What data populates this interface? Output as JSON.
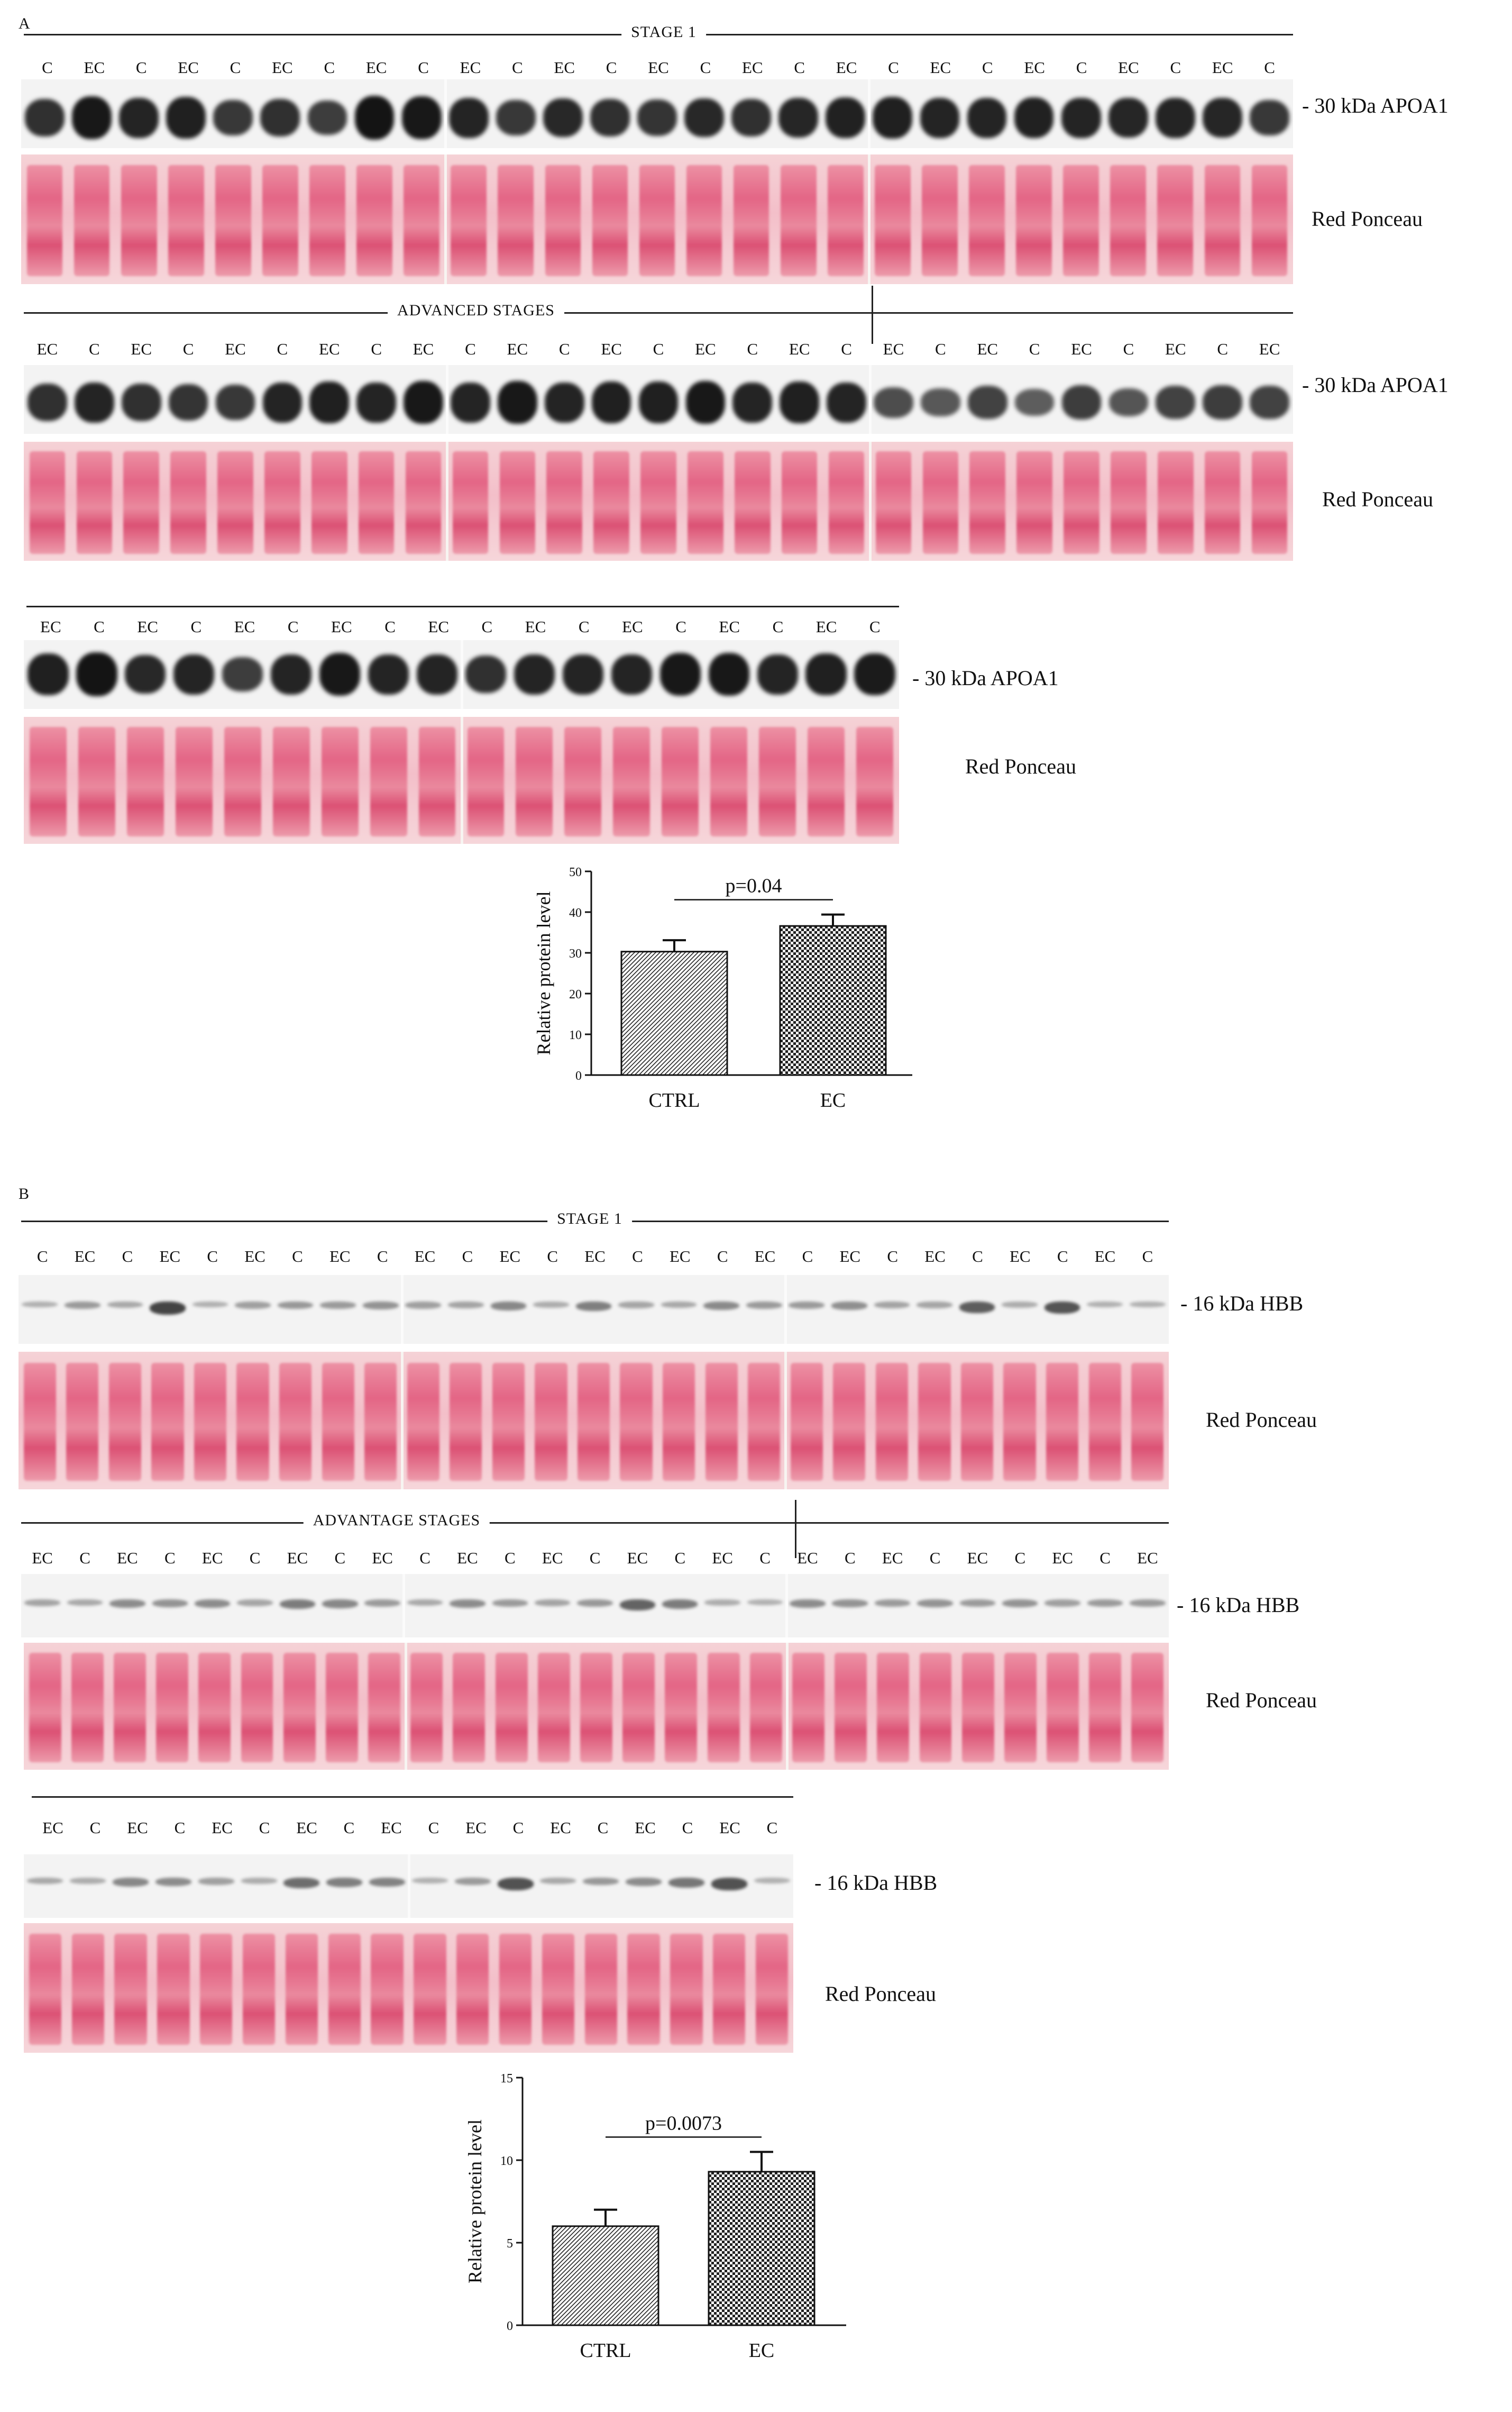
{
  "panels": [
    {
      "letter": "A",
      "stage1_title": "STAGE 1",
      "advanced_title": "ADVANCED STAGES",
      "rows": {
        "r1": [
          "C",
          "EC",
          "C",
          "EC",
          "C",
          "EC",
          "C",
          "EC",
          "C",
          "EC",
          "C",
          "EC",
          "C",
          "EC",
          "C",
          "EC",
          "C",
          "EC",
          "C",
          "EC",
          "C",
          "EC",
          "C",
          "EC",
          "C",
          "EC",
          "C"
        ],
        "r2": [
          "EC",
          "C",
          "EC",
          "C",
          "EC",
          "C",
          "EC",
          "C",
          "EC",
          "C",
          "EC",
          "C",
          "EC",
          "C",
          "EC",
          "C",
          "EC",
          "C",
          "EC",
          "C",
          "EC",
          "C",
          "EC",
          "C",
          "EC",
          "C",
          "EC"
        ],
        "r3": [
          "EC",
          "C",
          "EC",
          "C",
          "EC",
          "C",
          "EC",
          "C",
          "EC",
          "C",
          "EC",
          "C",
          "EC",
          "C",
          "EC",
          "C",
          "EC",
          "C"
        ]
      },
      "blot_label": "- 30 kDa  APOA1",
      "ponceau_label": "Red Ponceau",
      "chart_data": {
        "type": "bar",
        "categories": [
          "CTRL",
          "EC"
        ],
        "values": [
          30.3,
          36.6
        ],
        "errors": [
          2.8,
          2.8
        ],
        "ylabel": "Relative protein level",
        "ylim": [
          0,
          50
        ],
        "yticks": [
          0,
          10,
          20,
          30,
          40,
          50
        ],
        "annotation": "p=0.04"
      }
    },
    {
      "letter": "B",
      "stage1_title": "STAGE 1",
      "advanced_title": "ADVANTAGE STAGES",
      "rows": {
        "r1": [
          "C",
          "EC",
          "C",
          "EC",
          "C",
          "EC",
          "C",
          "EC",
          "C",
          "EC",
          "C",
          "EC",
          "C",
          "EC",
          "C",
          "EC",
          "C",
          "EC",
          "C",
          "EC",
          "C",
          "EC",
          "C",
          "EC",
          "C",
          "EC",
          "C"
        ],
        "r2": [
          "EC",
          "C",
          "EC",
          "C",
          "EC",
          "C",
          "EC",
          "C",
          "EC",
          "C",
          "EC",
          "C",
          "EC",
          "C",
          "EC",
          "C",
          "EC",
          "C",
          "EC",
          "C",
          "EC",
          "C",
          "EC",
          "C",
          "EC",
          "C",
          "EC"
        ],
        "r3": [
          "EC",
          "C",
          "EC",
          "C",
          "EC",
          "C",
          "EC",
          "C",
          "EC",
          "C",
          "EC",
          "C",
          "EC",
          "C",
          "EC",
          "C",
          "EC",
          "C"
        ]
      },
      "blot_label": "- 16 kDa HBB",
      "ponceau_label": "Red Ponceau",
      "chart_data": {
        "type": "bar",
        "categories": [
          "CTRL",
          "EC"
        ],
        "values": [
          6.0,
          9.3
        ],
        "errors": [
          1.0,
          1.2
        ],
        "ylabel": "Relative protein level",
        "ylim": [
          0,
          15
        ],
        "yticks": [
          0,
          5,
          10,
          15
        ],
        "annotation": "p=0.0073"
      }
    }
  ],
  "colors": {
    "apoa1_band": "#141414",
    "hbb_band": "#111111",
    "ponceau": "#e3557b",
    "ponceau_bg": "#f4c3cf",
    "bar_border": "#111111"
  }
}
